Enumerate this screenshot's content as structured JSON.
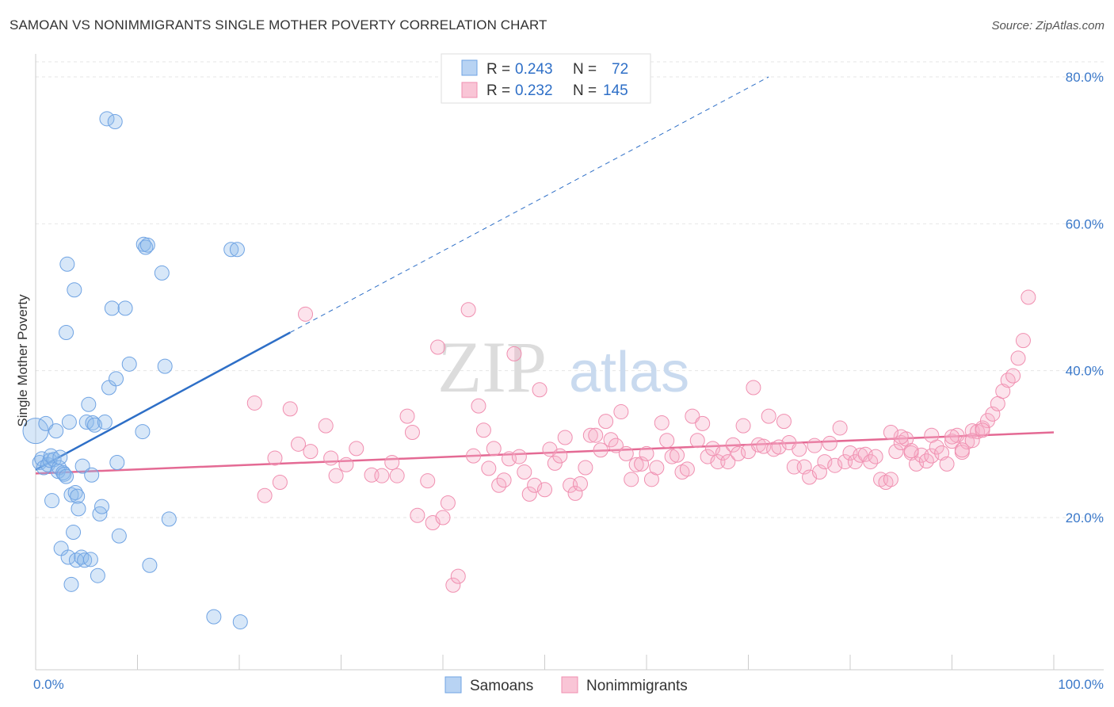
{
  "title": "SAMOAN VS NONIMMIGRANTS SINGLE MOTHER POVERTY CORRELATION CHART",
  "source": "Source: ZipAtlas.com",
  "watermark": {
    "zip": "ZIP",
    "atlas": "atlas"
  },
  "colors": {
    "samoans": "#6fa3e3",
    "nonimmigrants": "#f08fb0",
    "samoans_line": "#2e6fc7",
    "nonimmigrants_line": "#e46a94"
  },
  "legend": {
    "rows": [
      {
        "r_label": "R =",
        "r_value": "0.243",
        "n_label": "N =",
        "n_value": "72"
      },
      {
        "r_label": "R =",
        "r_value": "0.232",
        "n_label": "N =",
        "n_value": "145"
      }
    ]
  },
  "chart_data": {
    "type": "scatter",
    "xlabel": "",
    "ylabel": "Single Mother Poverty",
    "xlim": [
      0,
      100
    ],
    "ylim": [
      0,
      83
    ],
    "x_tick_labels": [
      "0.0%",
      "100.0%"
    ],
    "y_ticks": [
      20,
      40,
      60,
      80
    ],
    "y_tick_labels": [
      "20.0%",
      "40.0%",
      "60.0%",
      "80.0%"
    ],
    "grid": true,
    "legend_position": "top-center",
    "series": [
      {
        "name": "Samoans",
        "trend": {
          "x": [
            0,
            25
          ],
          "y": [
            26.5,
            45.2
          ],
          "dashed_to": [
            72,
            80
          ]
        },
        "points": [
          [
            0,
            31.8
          ],
          [
            0.4,
            27.5
          ],
          [
            0.6,
            28
          ],
          [
            0.8,
            26.8
          ],
          [
            1,
            32.8
          ],
          [
            1.2,
            27.2
          ],
          [
            1.4,
            27.8
          ],
          [
            1.5,
            28.4
          ],
          [
            1.6,
            22.3
          ],
          [
            1.8,
            27.9
          ],
          [
            2,
            31.8
          ],
          [
            2.2,
            26.3
          ],
          [
            2.3,
            26.8
          ],
          [
            2.4,
            28.2
          ],
          [
            2.5,
            15.8
          ],
          [
            2.7,
            26.1
          ],
          [
            2.8,
            25.9
          ],
          [
            3,
            25.6
          ],
          [
            3,
            45.2
          ],
          [
            3.1,
            54.5
          ],
          [
            3.2,
            14.6
          ],
          [
            3.3,
            33
          ],
          [
            3.5,
            23.1
          ],
          [
            3.5,
            10.9
          ],
          [
            3.7,
            18
          ],
          [
            3.8,
            51
          ],
          [
            3.9,
            23.4
          ],
          [
            4,
            14.2
          ],
          [
            4.1,
            22.9
          ],
          [
            4.2,
            21.2
          ],
          [
            4.5,
            14.6
          ],
          [
            4.6,
            27
          ],
          [
            4.8,
            14.2
          ],
          [
            5,
            33
          ],
          [
            5.2,
            35.4
          ],
          [
            5.4,
            14.3
          ],
          [
            5.5,
            25.8
          ],
          [
            5.6,
            32.9
          ],
          [
            5.8,
            32.6
          ],
          [
            6.1,
            12.1
          ],
          [
            6.3,
            20.5
          ],
          [
            6.5,
            21.5
          ],
          [
            6.8,
            33
          ],
          [
            7,
            74.3
          ],
          [
            7.2,
            37.7
          ],
          [
            7.5,
            48.5
          ],
          [
            7.8,
            73.9
          ],
          [
            7.9,
            38.9
          ],
          [
            8,
            27.5
          ],
          [
            8.2,
            17.5
          ],
          [
            8.8,
            48.5
          ],
          [
            9.2,
            40.9
          ],
          [
            10.5,
            31.7
          ],
          [
            10.6,
            57.2
          ],
          [
            10.8,
            56.8
          ],
          [
            11,
            57.1
          ],
          [
            11.2,
            13.5
          ],
          [
            12.4,
            53.3
          ],
          [
            12.7,
            40.6
          ],
          [
            13.1,
            19.8
          ],
          [
            17.5,
            6.5
          ],
          [
            19.2,
            56.5
          ],
          [
            19.8,
            56.5
          ],
          [
            20.1,
            5.8
          ]
        ]
      },
      {
        "name": "Nonimmigrants",
        "trend": {
          "x": [
            0,
            100
          ],
          "y": [
            26,
            31.6
          ]
        },
        "points": [
          [
            21.5,
            35.6
          ],
          [
            22.5,
            23
          ],
          [
            23.5,
            28.1
          ],
          [
            24,
            24.8
          ],
          [
            25,
            34.8
          ],
          [
            25.8,
            30
          ],
          [
            26.5,
            47.7
          ],
          [
            27,
            29
          ],
          [
            28.5,
            32.5
          ],
          [
            29,
            28.1
          ],
          [
            29.5,
            25.7
          ],
          [
            30.5,
            27.2
          ],
          [
            31.5,
            29.4
          ],
          [
            33,
            25.8
          ],
          [
            34,
            25.7
          ],
          [
            35,
            27.5
          ],
          [
            35.5,
            25.7
          ],
          [
            36.5,
            33.8
          ],
          [
            37,
            31.6
          ],
          [
            37.5,
            20.3
          ],
          [
            38.5,
            25
          ],
          [
            39,
            19.3
          ],
          [
            39.5,
            43.2
          ],
          [
            40,
            20
          ],
          [
            40.5,
            22
          ],
          [
            41,
            10.8
          ],
          [
            41.5,
            12
          ],
          [
            42.5,
            48.3
          ],
          [
            43,
            28.4
          ],
          [
            43.5,
            35.2
          ],
          [
            44,
            31.9
          ],
          [
            44.5,
            26.7
          ],
          [
            45,
            29.4
          ],
          [
            45.5,
            24.4
          ],
          [
            46,
            25.1
          ],
          [
            46.5,
            28
          ],
          [
            47,
            42.3
          ],
          [
            47.5,
            28.3
          ],
          [
            48,
            26.2
          ],
          [
            48.5,
            23.2
          ],
          [
            49,
            24.4
          ],
          [
            49.5,
            37.4
          ],
          [
            50,
            23.8
          ],
          [
            50.5,
            29.3
          ],
          [
            51,
            27.4
          ],
          [
            51.5,
            28.4
          ],
          [
            52,
            30.9
          ],
          [
            52.5,
            24.4
          ],
          [
            53,
            23.3
          ],
          [
            53.5,
            24.6
          ],
          [
            54,
            26.8
          ],
          [
            54.5,
            31.2
          ],
          [
            55,
            31.2
          ],
          [
            55.5,
            29.2
          ],
          [
            56,
            33.1
          ],
          [
            56.5,
            30.6
          ],
          [
            57,
            29.8
          ],
          [
            57.5,
            34.4
          ],
          [
            58,
            28.7
          ],
          [
            58.5,
            25.2
          ],
          [
            59,
            27.2
          ],
          [
            59.5,
            27.3
          ],
          [
            60,
            28.7
          ],
          [
            60.5,
            25.2
          ],
          [
            61,
            26.8
          ],
          [
            61.5,
            32.9
          ],
          [
            62,
            30.5
          ],
          [
            62.5,
            28.3
          ],
          [
            63,
            28.5
          ],
          [
            63.5,
            26.2
          ],
          [
            64,
            26.6
          ],
          [
            64.5,
            33.8
          ],
          [
            65,
            30.5
          ],
          [
            65.5,
            32.8
          ],
          [
            66,
            28.3
          ],
          [
            66.5,
            29.4
          ],
          [
            67,
            27.6
          ],
          [
            67.5,
            28.8
          ],
          [
            68,
            27.6
          ],
          [
            68.5,
            29.9
          ],
          [
            69,
            28.7
          ],
          [
            69.5,
            32.5
          ],
          [
            70,
            29
          ],
          [
            70.5,
            37.7
          ],
          [
            71,
            29.9
          ],
          [
            71.5,
            29.7
          ],
          [
            72,
            33.8
          ],
          [
            72.5,
            29.3
          ],
          [
            73,
            29.6
          ],
          [
            73.5,
            33.1
          ],
          [
            74,
            30.2
          ],
          [
            74.5,
            26.9
          ],
          [
            75,
            29.3
          ],
          [
            75.5,
            26.9
          ],
          [
            76,
            25.5
          ],
          [
            76.5,
            29.8
          ],
          [
            77,
            26.2
          ],
          [
            77.5,
            27.6
          ],
          [
            78,
            30.1
          ],
          [
            78.5,
            27.1
          ],
          [
            79,
            32.2
          ],
          [
            79.5,
            27.6
          ],
          [
            80,
            28.8
          ],
          [
            80.5,
            27.6
          ],
          [
            81,
            28.5
          ],
          [
            81.5,
            28.6
          ],
          [
            82,
            27.6
          ],
          [
            82.5,
            28.3
          ],
          [
            83,
            25.2
          ],
          [
            83.5,
            24.8
          ],
          [
            84,
            25.2
          ],
          [
            84.5,
            29
          ],
          [
            85,
            30.2
          ],
          [
            85.5,
            30.7
          ],
          [
            86,
            28.8
          ],
          [
            86.5,
            27.3
          ],
          [
            87,
            28.5
          ],
          [
            87.5,
            27.7
          ],
          [
            88,
            28.4
          ],
          [
            88.5,
            29.6
          ],
          [
            89,
            28.8
          ],
          [
            89.5,
            27.3
          ],
          [
            90,
            30.4
          ],
          [
            90.5,
            31.2
          ],
          [
            91,
            28.9
          ],
          [
            91.5,
            30.3
          ],
          [
            92,
            31.8
          ],
          [
            92.5,
            31.7
          ],
          [
            93,
            32.2
          ],
          [
            93.5,
            33.2
          ],
          [
            94,
            34.1
          ],
          [
            94.5,
            35.5
          ],
          [
            95,
            37.2
          ],
          [
            95.5,
            38.7
          ],
          [
            96,
            39.3
          ],
          [
            96.5,
            41.7
          ],
          [
            97,
            44.1
          ],
          [
            97.5,
            50
          ],
          [
            90,
            31
          ],
          [
            88,
            31.2
          ],
          [
            85,
            31
          ],
          [
            84,
            31.6
          ],
          [
            86,
            29.1
          ],
          [
            92,
            30.5
          ],
          [
            91,
            29.2
          ],
          [
            93,
            31.9
          ]
        ]
      }
    ]
  },
  "bottom_legend": [
    {
      "label": "Samoans"
    },
    {
      "label": "Nonimmigrants"
    }
  ]
}
